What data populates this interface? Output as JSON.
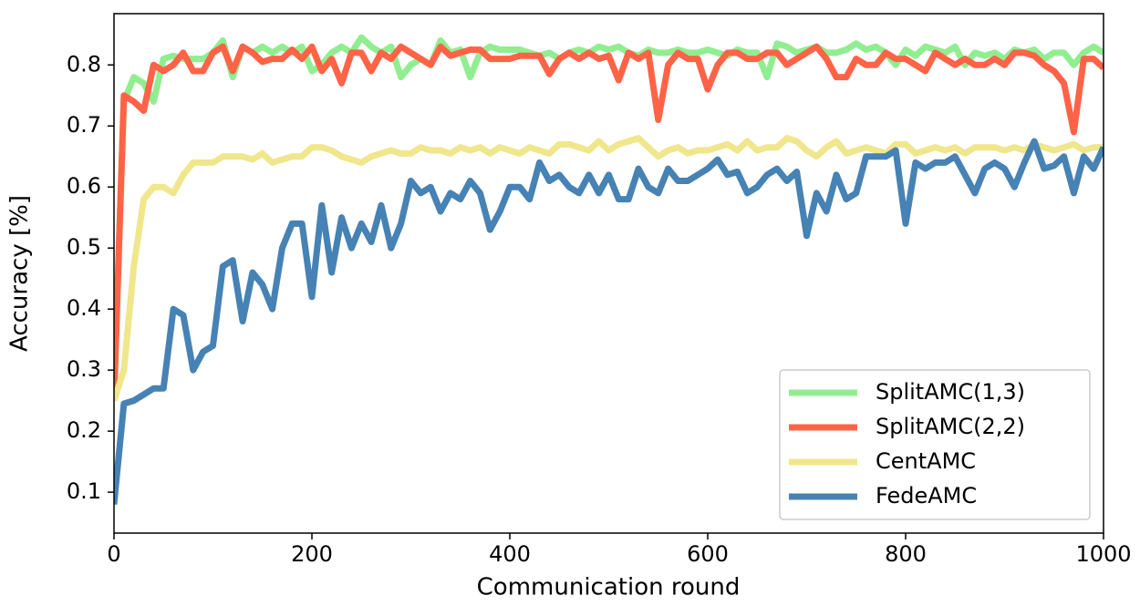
{
  "chart_data": {
    "type": "line",
    "xlabel": "Communication round",
    "ylabel": "Accuracy [%]",
    "x": [
      0,
      10,
      20,
      30,
      40,
      50,
      60,
      70,
      80,
      90,
      100,
      110,
      120,
      130,
      140,
      150,
      160,
      170,
      180,
      190,
      200,
      210,
      220,
      230,
      240,
      250,
      260,
      270,
      280,
      290,
      300,
      310,
      320,
      330,
      340,
      350,
      360,
      370,
      380,
      390,
      400,
      410,
      420,
      430,
      440,
      450,
      460,
      470,
      480,
      490,
      500,
      510,
      520,
      530,
      540,
      550,
      560,
      570,
      580,
      590,
      600,
      610,
      620,
      630,
      640,
      650,
      660,
      670,
      680,
      690,
      700,
      710,
      720,
      730,
      740,
      750,
      760,
      770,
      780,
      790,
      800,
      810,
      820,
      830,
      840,
      850,
      860,
      870,
      880,
      890,
      900,
      910,
      920,
      930,
      940,
      950,
      960,
      970,
      980,
      990,
      1000
    ],
    "xlim": [
      0,
      1000
    ],
    "xticks": [
      0,
      200,
      400,
      600,
      800,
      1000
    ],
    "ylim": [
      0.033,
      0.884
    ],
    "yticks": [
      0.1,
      0.2,
      0.3,
      0.4,
      0.5,
      0.6,
      0.7,
      0.8
    ],
    "grid": false,
    "legend": "lower right",
    "series": [
      {
        "name": "SplitAMC(1,3)",
        "color": "#90ee90",
        "values": [
          0.27,
          0.74,
          0.78,
          0.77,
          0.74,
          0.81,
          0.815,
          0.81,
          0.81,
          0.81,
          0.82,
          0.84,
          0.78,
          0.83,
          0.82,
          0.83,
          0.82,
          0.83,
          0.82,
          0.83,
          0.79,
          0.8,
          0.82,
          0.83,
          0.82,
          0.845,
          0.83,
          0.82,
          0.83,
          0.78,
          0.8,
          0.81,
          0.8,
          0.84,
          0.82,
          0.825,
          0.78,
          0.82,
          0.83,
          0.825,
          0.825,
          0.825,
          0.82,
          0.815,
          0.82,
          0.81,
          0.82,
          0.825,
          0.82,
          0.83,
          0.825,
          0.83,
          0.82,
          0.815,
          0.825,
          0.82,
          0.82,
          0.825,
          0.82,
          0.82,
          0.825,
          0.82,
          0.815,
          0.825,
          0.82,
          0.82,
          0.78,
          0.835,
          0.83,
          0.82,
          0.825,
          0.83,
          0.82,
          0.82,
          0.825,
          0.835,
          0.825,
          0.83,
          0.82,
          0.8,
          0.825,
          0.815,
          0.83,
          0.825,
          0.82,
          0.83,
          0.8,
          0.82,
          0.815,
          0.82,
          0.81,
          0.825,
          0.82,
          0.825,
          0.81,
          0.82,
          0.82,
          0.8,
          0.82,
          0.83,
          0.82
        ]
      },
      {
        "name": "SplitAMC(2,2)",
        "color": "#ff6347",
        "values": [
          0.25,
          0.75,
          0.74,
          0.725,
          0.8,
          0.79,
          0.8,
          0.82,
          0.79,
          0.79,
          0.82,
          0.83,
          0.79,
          0.83,
          0.82,
          0.805,
          0.81,
          0.81,
          0.825,
          0.81,
          0.83,
          0.79,
          0.81,
          0.77,
          0.82,
          0.82,
          0.79,
          0.82,
          0.81,
          0.83,
          0.82,
          0.81,
          0.8,
          0.83,
          0.815,
          0.82,
          0.825,
          0.825,
          0.81,
          0.81,
          0.81,
          0.815,
          0.815,
          0.815,
          0.785,
          0.81,
          0.82,
          0.81,
          0.82,
          0.81,
          0.815,
          0.775,
          0.82,
          0.81,
          0.82,
          0.71,
          0.8,
          0.82,
          0.81,
          0.81,
          0.76,
          0.8,
          0.82,
          0.82,
          0.81,
          0.81,
          0.82,
          0.82,
          0.8,
          0.81,
          0.82,
          0.83,
          0.81,
          0.78,
          0.78,
          0.81,
          0.8,
          0.8,
          0.82,
          0.81,
          0.81,
          0.8,
          0.79,
          0.82,
          0.81,
          0.8,
          0.81,
          0.8,
          0.8,
          0.81,
          0.8,
          0.82,
          0.82,
          0.815,
          0.8,
          0.79,
          0.77,
          0.69,
          0.81,
          0.81,
          0.795
        ]
      },
      {
        "name": "CentAMC",
        "color": "#f0e68c",
        "values": [
          0.25,
          0.3,
          0.47,
          0.58,
          0.6,
          0.6,
          0.59,
          0.62,
          0.64,
          0.64,
          0.64,
          0.65,
          0.65,
          0.65,
          0.645,
          0.655,
          0.64,
          0.645,
          0.65,
          0.65,
          0.665,
          0.665,
          0.66,
          0.65,
          0.645,
          0.64,
          0.65,
          0.655,
          0.66,
          0.655,
          0.655,
          0.665,
          0.66,
          0.66,
          0.655,
          0.665,
          0.66,
          0.665,
          0.655,
          0.665,
          0.66,
          0.655,
          0.665,
          0.66,
          0.655,
          0.67,
          0.67,
          0.665,
          0.66,
          0.675,
          0.66,
          0.67,
          0.675,
          0.68,
          0.665,
          0.65,
          0.66,
          0.665,
          0.655,
          0.66,
          0.66,
          0.665,
          0.67,
          0.66,
          0.675,
          0.66,
          0.665,
          0.665,
          0.68,
          0.675,
          0.66,
          0.65,
          0.665,
          0.675,
          0.655,
          0.66,
          0.665,
          0.66,
          0.655,
          0.67,
          0.67,
          0.655,
          0.66,
          0.665,
          0.66,
          0.665,
          0.655,
          0.665,
          0.665,
          0.665,
          0.66,
          0.665,
          0.66,
          0.67,
          0.665,
          0.66,
          0.665,
          0.67,
          0.66,
          0.665,
          0.665
        ]
      },
      {
        "name": "FedeAMC",
        "color": "#4682b4",
        "values": [
          0.08,
          0.245,
          0.25,
          0.26,
          0.27,
          0.27,
          0.4,
          0.39,
          0.3,
          0.33,
          0.34,
          0.47,
          0.48,
          0.38,
          0.46,
          0.44,
          0.4,
          0.5,
          0.54,
          0.54,
          0.42,
          0.57,
          0.46,
          0.55,
          0.5,
          0.54,
          0.51,
          0.57,
          0.5,
          0.54,
          0.61,
          0.59,
          0.6,
          0.56,
          0.59,
          0.58,
          0.61,
          0.59,
          0.53,
          0.56,
          0.6,
          0.6,
          0.58,
          0.64,
          0.61,
          0.62,
          0.6,
          0.59,
          0.62,
          0.59,
          0.62,
          0.58,
          0.58,
          0.63,
          0.6,
          0.59,
          0.63,
          0.61,
          0.61,
          0.62,
          0.63,
          0.645,
          0.62,
          0.625,
          0.59,
          0.6,
          0.62,
          0.63,
          0.61,
          0.625,
          0.52,
          0.59,
          0.56,
          0.62,
          0.58,
          0.59,
          0.65,
          0.65,
          0.65,
          0.66,
          0.54,
          0.64,
          0.63,
          0.64,
          0.64,
          0.65,
          0.62,
          0.59,
          0.63,
          0.64,
          0.63,
          0.6,
          0.64,
          0.675,
          0.63,
          0.635,
          0.65,
          0.59,
          0.65,
          0.63,
          0.665
        ]
      }
    ]
  }
}
